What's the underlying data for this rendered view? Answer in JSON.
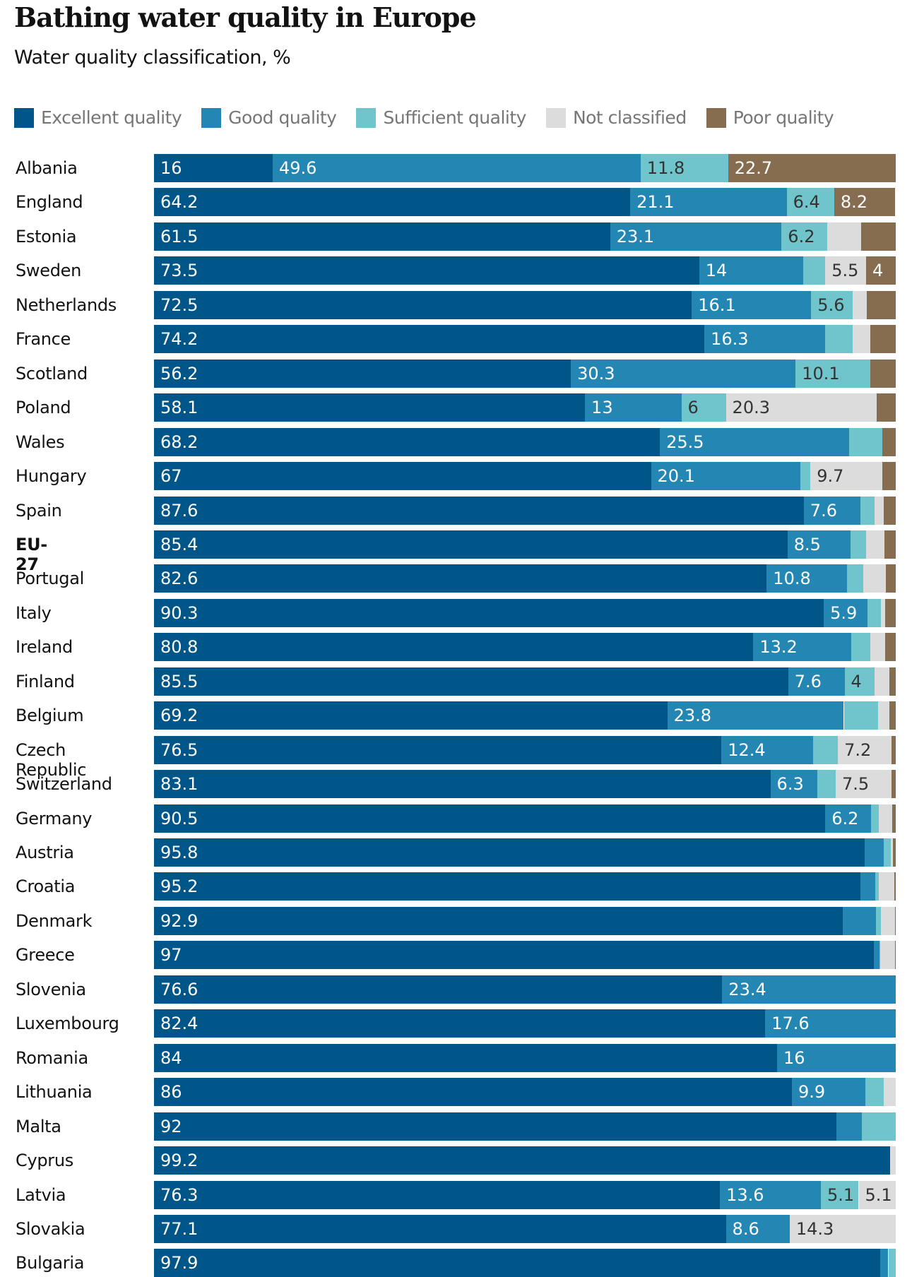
{
  "title": "Bathing water quality in Europe",
  "subtitle": "Water quality classification, %",
  "chart_data": {
    "type": "bar",
    "orientation": "horizontal",
    "stacked": true,
    "title": "Bathing water quality in Europe",
    "subtitle": "Water quality classification, %",
    "xlim": [
      0,
      100
    ],
    "grid": false,
    "legend_position": "top-left",
    "series": [
      {
        "name": "Excellent quality",
        "color": "#005689"
      },
      {
        "name": "Good quality",
        "color": "#2486b3"
      },
      {
        "name": "Sufficient quality",
        "color": "#6fc5cb"
      },
      {
        "name": "Not classified",
        "color": "#dcdcdc"
      },
      {
        "name": "Poor quality",
        "color": "#866d4f"
      }
    ],
    "rows": [
      {
        "category": "Albania",
        "values": [
          16,
          49.6,
          11.8,
          0,
          22.7
        ],
        "labels": [
          "16",
          "49.6",
          "11.8",
          null,
          "22.7"
        ]
      },
      {
        "category": "England",
        "values": [
          64.2,
          21.1,
          6.4,
          0,
          8.2
        ],
        "labels": [
          "64.2",
          "21.1",
          "6.4",
          null,
          "8.2"
        ]
      },
      {
        "category": "Estonia",
        "values": [
          61.5,
          23.1,
          6.2,
          4.5,
          4.7
        ],
        "labels": [
          "61.5",
          "23.1",
          "6.2",
          null,
          null
        ]
      },
      {
        "category": "Sweden",
        "values": [
          73.5,
          14,
          3.0,
          5.5,
          4
        ],
        "labels": [
          "73.5",
          "14",
          null,
          "5.5",
          "4"
        ]
      },
      {
        "category": "Netherlands",
        "values": [
          72.5,
          16.1,
          5.6,
          1.9,
          3.9
        ],
        "labels": [
          "72.5",
          "16.1",
          "5.6",
          null,
          null
        ]
      },
      {
        "category": "France",
        "values": [
          74.2,
          16.3,
          3.7,
          2.4,
          3.4
        ],
        "labels": [
          "74.2",
          "16.3",
          null,
          null,
          null
        ]
      },
      {
        "category": "Scotland",
        "values": [
          56.2,
          30.3,
          10.1,
          0,
          3.4
        ],
        "labels": [
          "56.2",
          "30.3",
          "10.1",
          null,
          null
        ]
      },
      {
        "category": "Poland",
        "values": [
          58.1,
          13,
          6,
          20.3,
          2.6
        ],
        "labels": [
          "58.1",
          "13",
          "6",
          "20.3",
          null
        ]
      },
      {
        "category": "Wales",
        "values": [
          68.2,
          25.5,
          4.5,
          0,
          1.8
        ],
        "labels": [
          "68.2",
          "25.5",
          null,
          null,
          null
        ]
      },
      {
        "category": "Hungary",
        "values": [
          67,
          20.1,
          1.4,
          9.7,
          1.8
        ],
        "labels": [
          "67",
          "20.1",
          null,
          "9.7",
          null
        ]
      },
      {
        "category": "Spain",
        "values": [
          87.6,
          7.6,
          1.9,
          1.3,
          1.6
        ],
        "labels": [
          "87.6",
          "7.6",
          null,
          null,
          null
        ]
      },
      {
        "category": "EU-27",
        "bold": true,
        "values": [
          85.4,
          8.5,
          2.1,
          2.5,
          1.5
        ],
        "labels": [
          "85.4",
          "8.5",
          null,
          null,
          null
        ]
      },
      {
        "category": "Portugal",
        "values": [
          82.6,
          10.8,
          2.2,
          3.1,
          1.3
        ],
        "labels": [
          "82.6",
          "10.8",
          null,
          null,
          null
        ]
      },
      {
        "category": "Italy",
        "values": [
          90.3,
          5.9,
          1.8,
          0.6,
          1.4
        ],
        "labels": [
          "90.3",
          "5.9",
          null,
          null,
          null
        ]
      },
      {
        "category": "Ireland",
        "values": [
          80.8,
          13.2,
          2.6,
          2.0,
          1.4
        ],
        "labels": [
          "80.8",
          "13.2",
          null,
          null,
          null
        ]
      },
      {
        "category": "Finland",
        "values": [
          85.5,
          7.6,
          4,
          2.0,
          0.9
        ],
        "labels": [
          "85.5",
          "7.6",
          "4",
          null,
          null
        ]
      },
      {
        "category": "Belgium",
        "values": [
          69.2,
          23.8,
          4.6,
          1.5,
          0.9
        ],
        "labels": [
          "69.2",
          "23.8",
          null,
          null,
          null
        ]
      },
      {
        "category": "Czech Republic",
        "values": [
          76.5,
          12.4,
          3.3,
          7.2,
          0.6
        ],
        "labels": [
          "76.5",
          "12.4",
          null,
          "7.2",
          null
        ]
      },
      {
        "category": "Switzerland",
        "values": [
          83.1,
          6.3,
          2.5,
          7.5,
          0.6
        ],
        "labels": [
          "83.1",
          "6.3",
          null,
          "7.5",
          null
        ]
      },
      {
        "category": "Germany",
        "values": [
          90.5,
          6.2,
          1.0,
          1.8,
          0.5
        ],
        "labels": [
          "90.5",
          "6.2",
          null,
          null,
          null
        ]
      },
      {
        "category": "Austria",
        "values": [
          95.8,
          2.6,
          0.9,
          0.3,
          0.4
        ],
        "labels": [
          "95.8",
          null,
          null,
          null,
          null
        ]
      },
      {
        "category": "Croatia",
        "values": [
          95.2,
          2.0,
          0.5,
          2.1,
          0.2
        ],
        "labels": [
          "95.2",
          null,
          null,
          null,
          null
        ]
      },
      {
        "category": "Denmark",
        "values": [
          92.9,
          4.4,
          0.7,
          1.9,
          0.1
        ],
        "labels": [
          "92.9",
          null,
          null,
          null,
          null
        ]
      },
      {
        "category": "Greece",
        "values": [
          97,
          0.8,
          0.1,
          2.0,
          0.1
        ],
        "labels": [
          "97",
          null,
          null,
          null,
          null
        ]
      },
      {
        "category": "Slovenia",
        "values": [
          76.6,
          23.4,
          0,
          0,
          0
        ],
        "labels": [
          "76.6",
          "23.4",
          null,
          null,
          null
        ]
      },
      {
        "category": "Luxembourg",
        "values": [
          82.4,
          17.6,
          0,
          0,
          0
        ],
        "labels": [
          "82.4",
          "17.6",
          null,
          null,
          null
        ]
      },
      {
        "category": "Romania",
        "values": [
          84,
          16,
          0,
          0,
          0
        ],
        "labels": [
          "84",
          "16",
          null,
          null,
          null
        ]
      },
      {
        "category": "Lithuania",
        "values": [
          86,
          9.9,
          2.5,
          1.6,
          0
        ],
        "labels": [
          "86",
          "9.9",
          null,
          null,
          null
        ]
      },
      {
        "category": "Malta",
        "values": [
          92,
          3.4,
          4.6,
          0,
          0
        ],
        "labels": [
          "92",
          null,
          null,
          null,
          null
        ]
      },
      {
        "category": "Cyprus",
        "values": [
          99.2,
          0,
          0,
          0.8,
          0
        ],
        "labels": [
          "99.2",
          null,
          null,
          null,
          null
        ]
      },
      {
        "category": "Latvia",
        "values": [
          76.3,
          13.6,
          5.1,
          5.1,
          0
        ],
        "labels": [
          "76.3",
          "13.6",
          "5.1",
          "5.1",
          null
        ]
      },
      {
        "category": "Slovakia",
        "values": [
          77.1,
          8.6,
          0,
          14.3,
          0
        ],
        "labels": [
          "77.1",
          "8.6",
          null,
          "14.3",
          null
        ]
      },
      {
        "category": "Bulgaria",
        "values": [
          97.9,
          1.1,
          1.0,
          0,
          0
        ],
        "labels": [
          "97.9",
          null,
          null,
          null,
          null
        ]
      }
    ]
  }
}
